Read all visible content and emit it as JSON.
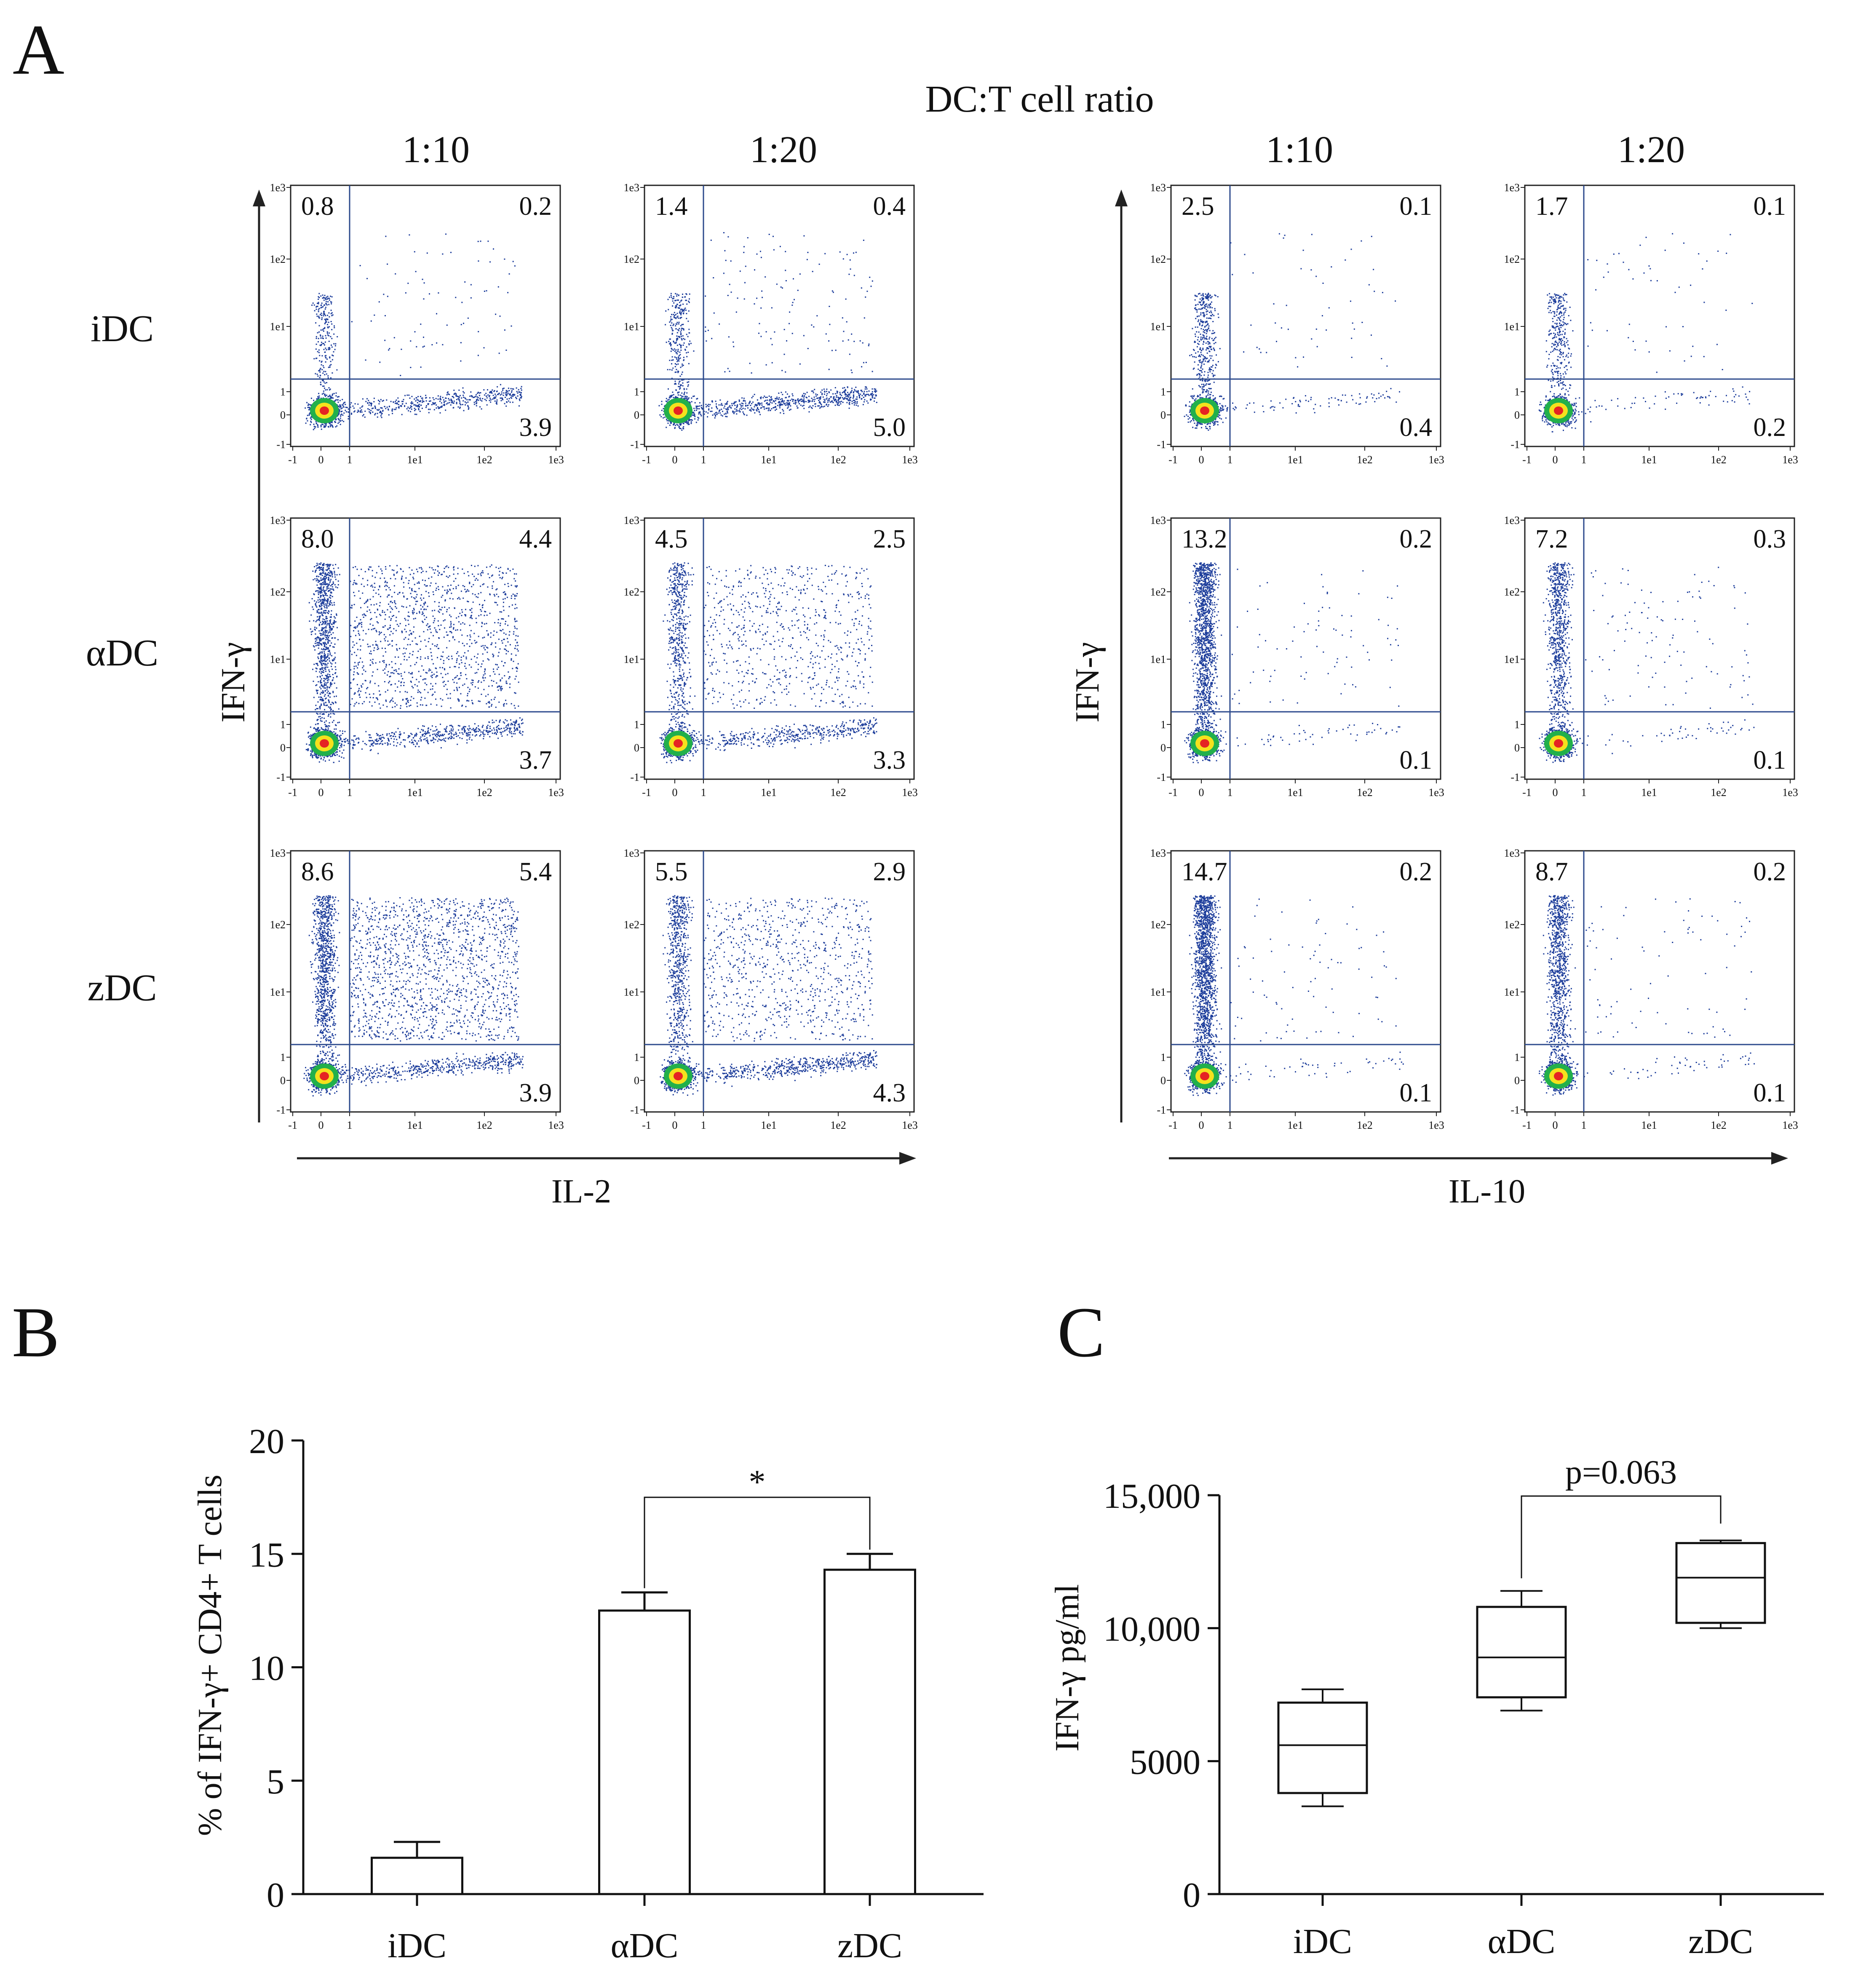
{
  "panel_labels": {
    "a": "A",
    "b": "B",
    "c": "C"
  },
  "flow": {
    "header": "DC:T cell ratio",
    "ratios": [
      "1:10",
      "1:20"
    ],
    "rows": [
      "iDC",
      "αDC",
      "zDC"
    ],
    "ylabel": "IFN-γ",
    "xlabels": [
      "IL-2",
      "IL-10"
    ],
    "x_ticks": [
      "-1",
      "0",
      "1",
      "1e1",
      "1e2",
      "1e3"
    ],
    "y_ticks": [
      "1e3",
      "1e2",
      "1e1",
      "1",
      "0",
      "-1"
    ],
    "quadrants": [
      [
        [
          "0.8",
          "0.2",
          "3.9"
        ],
        [
          "1.4",
          "0.4",
          "5.0"
        ],
        [
          "2.5",
          "0.1",
          "0.4"
        ],
        [
          "1.7",
          "0.1",
          "0.2"
        ]
      ],
      [
        [
          "8.0",
          "4.4",
          "3.7"
        ],
        [
          "4.5",
          "2.5",
          "3.3"
        ],
        [
          "13.2",
          "0.2",
          "0.1"
        ],
        [
          "7.2",
          "0.3",
          "0.1"
        ]
      ],
      [
        [
          "8.6",
          "5.4",
          "3.9"
        ],
        [
          "5.5",
          "2.9",
          "4.3"
        ],
        [
          "14.7",
          "0.2",
          "0.1"
        ],
        [
          "8.7",
          "0.2",
          "0.1"
        ]
      ]
    ],
    "colors": {
      "dots": "#1f3f9c",
      "gate": "#2c4a8c",
      "core_green": "#22b04b",
      "core_yellow": "#f5e11d",
      "core_red": "#e52323"
    }
  },
  "chart_data": [
    {
      "type": "bar",
      "title": "",
      "categories": [
        "iDC",
        "αDC",
        "zDC"
      ],
      "values": [
        1.6,
        12.5,
        14.3
      ],
      "errors": [
        0.7,
        0.8,
        0.7
      ],
      "ylabel": "% of IFN-γ+ CD4+ T cells",
      "xlabel": "",
      "ylim": [
        0,
        20
      ],
      "yticks": [
        "0",
        "5",
        "10",
        "15",
        "20"
      ],
      "significance": {
        "from": "αDC",
        "to": "zDC",
        "label": "*"
      }
    },
    {
      "type": "box",
      "title": "",
      "categories": [
        "iDC",
        "αDC",
        "zDC"
      ],
      "boxes": [
        {
          "min": 3300,
          "q1": 3800,
          "median": 5600,
          "q3": 7200,
          "max": 7700
        },
        {
          "min": 6900,
          "q1": 7400,
          "median": 8900,
          "q3": 10800,
          "max": 11400
        },
        {
          "min": 10000,
          "q1": 10200,
          "median": 11900,
          "q3": 13200,
          "max": 13300
        }
      ],
      "ylabel": "IFN-γ pg/ml",
      "xlabel": "",
      "ylim": [
        0,
        15000
      ],
      "yticks": [
        "0",
        "5000",
        "10,000",
        "15,000"
      ],
      "significance": {
        "from": "αDC",
        "to": "zDC",
        "label": "p=0.063"
      }
    }
  ]
}
